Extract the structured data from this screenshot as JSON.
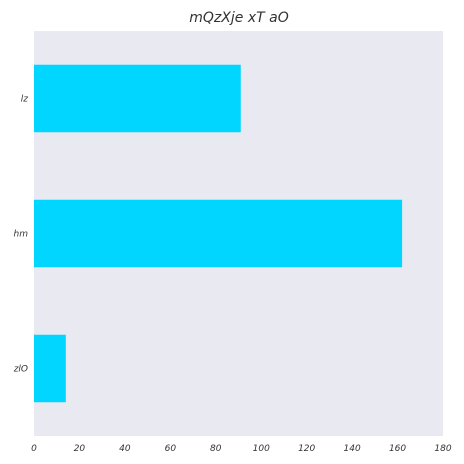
{
  "chart_data": {
    "type": "bar",
    "orientation": "horizontal",
    "title": "mQzXje xT aO",
    "xlabel": "",
    "ylabel": "",
    "categories": [
      "lz",
      "hm",
      "zlO"
    ],
    "values": [
      91,
      162,
      14
    ],
    "xlim": [
      0,
      180
    ],
    "xticks": [
      0,
      20,
      40,
      60,
      80,
      100,
      120,
      140,
      160,
      180
    ],
    "grid": false,
    "legend": "none",
    "colors": {
      "bar": "#00d6ff",
      "plot_background": "#e9e9f2"
    }
  }
}
